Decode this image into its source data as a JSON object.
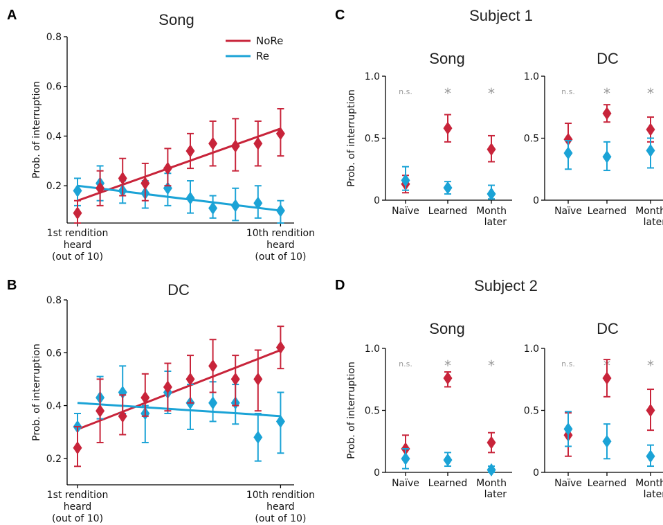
{
  "colors": {
    "nore": "#c8243a",
    "re": "#1ba3d6",
    "sig": "#999999"
  },
  "legend": {
    "location": "top-right",
    "entries": [
      "NoRe",
      "Re"
    ]
  },
  "chart_data": [
    {
      "id": "A",
      "panel": "A",
      "type": "scatter",
      "title": "Song",
      "ylabel": "Prob. of interruption",
      "ylim": [
        0.05,
        0.8
      ],
      "yticks": [
        0.2,
        0.4,
        0.6,
        0.8
      ],
      "xlim": [
        0.5,
        10.5
      ],
      "xtick_labels": [
        {
          "x": 1,
          "lines": [
            "1st rendition",
            "heard",
            "(out of 10)"
          ]
        },
        {
          "x": 10,
          "lines": [
            "10th rendition",
            "heard",
            "(out of 10)"
          ]
        }
      ],
      "series": [
        {
          "name": "NoRe",
          "color": "#c8243a",
          "x": [
            1,
            2,
            3,
            4,
            5,
            6,
            7,
            8,
            9,
            10
          ],
          "y": [
            0.09,
            0.19,
            0.23,
            0.21,
            0.27,
            0.34,
            0.37,
            0.36,
            0.37,
            0.41
          ],
          "lo": [
            0.05,
            0.12,
            0.16,
            0.14,
            0.2,
            0.27,
            0.28,
            0.26,
            0.28,
            0.32
          ],
          "hi": [
            0.14,
            0.26,
            0.31,
            0.29,
            0.35,
            0.41,
            0.46,
            0.47,
            0.46,
            0.51
          ],
          "fit": [
            [
              1,
              0.14
            ],
            [
              10,
              0.43
            ]
          ]
        },
        {
          "name": "Re",
          "color": "#1ba3d6",
          "x": [
            1,
            2,
            3,
            4,
            5,
            6,
            7,
            8,
            9,
            10
          ],
          "y": [
            0.18,
            0.21,
            0.18,
            0.17,
            0.19,
            0.15,
            0.11,
            0.12,
            0.13,
            0.1
          ],
          "lo": [
            0.12,
            0.14,
            0.13,
            0.11,
            0.12,
            0.09,
            0.07,
            0.06,
            0.07,
            0.05
          ],
          "hi": [
            0.23,
            0.28,
            0.22,
            0.22,
            0.25,
            0.22,
            0.16,
            0.19,
            0.2,
            0.14
          ],
          "fit": [
            [
              1,
              0.2
            ],
            [
              10,
              0.1
            ]
          ]
        }
      ]
    },
    {
      "id": "B",
      "panel": "B",
      "type": "scatter",
      "title": "DC",
      "ylabel": "Prob. of interruption",
      "ylim": [
        0.1,
        0.8
      ],
      "yticks": [
        0.2,
        0.4,
        0.6,
        0.8
      ],
      "xlim": [
        0.5,
        10.5
      ],
      "xtick_labels": [
        {
          "x": 1,
          "lines": [
            "1st rendition",
            "heard",
            "(out of 10)"
          ]
        },
        {
          "x": 10,
          "lines": [
            "10th rendition",
            "heard",
            "(out of 10)"
          ]
        }
      ],
      "series": [
        {
          "name": "NoRe",
          "color": "#c8243a",
          "x": [
            1,
            2,
            3,
            4,
            5,
            6,
            7,
            8,
            9,
            10
          ],
          "y": [
            0.24,
            0.38,
            0.36,
            0.43,
            0.47,
            0.5,
            0.55,
            0.5,
            0.5,
            0.62
          ],
          "lo": [
            0.17,
            0.26,
            0.29,
            0.36,
            0.38,
            0.41,
            0.45,
            0.4,
            0.38,
            0.54
          ],
          "hi": [
            0.32,
            0.5,
            0.44,
            0.52,
            0.56,
            0.59,
            0.65,
            0.59,
            0.61,
            0.7
          ],
          "fit": [
            [
              1,
              0.31
            ],
            [
              10,
              0.61
            ]
          ]
        },
        {
          "name": "Re",
          "color": "#1ba3d6",
          "x": [
            1,
            2,
            3,
            4,
            5,
            6,
            7,
            8,
            9,
            10
          ],
          "y": [
            0.32,
            0.43,
            0.45,
            0.37,
            0.45,
            0.41,
            0.41,
            0.41,
            0.28,
            0.34
          ],
          "lo": [
            0.24,
            0.35,
            0.37,
            0.26,
            0.37,
            0.31,
            0.34,
            0.33,
            0.19,
            0.22
          ],
          "hi": [
            0.37,
            0.51,
            0.55,
            0.4,
            0.53,
            0.48,
            0.49,
            0.48,
            0.37,
            0.45
          ],
          "fit": [
            [
              1,
              0.41
            ],
            [
              10,
              0.36
            ]
          ]
        }
      ]
    },
    {
      "id": "C-song",
      "panel": "C",
      "type": "scatter",
      "title": "Song",
      "ylabel": "Prob. of interruption",
      "ylim": [
        0,
        1.0
      ],
      "yticks": [
        0,
        0.5,
        1.0
      ],
      "ytick_labels": [
        "0",
        "0.5",
        "1.0"
      ],
      "categories": [
        [
          "Naïve"
        ],
        [
          "Learned"
        ],
        [
          "Month",
          "later"
        ]
      ],
      "significance": [
        "n.s.",
        "*",
        "*"
      ],
      "series": [
        {
          "name": "NoRe",
          "color": "#c8243a",
          "y": [
            0.13,
            0.58,
            0.41
          ],
          "lo": [
            0.06,
            0.47,
            0.31
          ],
          "hi": [
            0.2,
            0.69,
            0.52
          ]
        },
        {
          "name": "Re",
          "color": "#1ba3d6",
          "y": [
            0.16,
            0.1,
            0.05
          ],
          "lo": [
            0.08,
            0.05,
            0.01
          ],
          "hi": [
            0.27,
            0.15,
            0.12
          ]
        }
      ]
    },
    {
      "id": "C-dc",
      "panel": "C",
      "type": "scatter",
      "title": "DC",
      "ylabel": "",
      "ylim": [
        0,
        1.0
      ],
      "yticks": [
        0,
        0.5,
        1.0
      ],
      "ytick_labels": [
        "0",
        "0.5",
        "1.0"
      ],
      "categories": [
        [
          "Naïve"
        ],
        [
          "Learned"
        ],
        [
          "Month",
          "later"
        ]
      ],
      "significance": [
        "n.s.",
        "*",
        "*"
      ],
      "series": [
        {
          "name": "NoRe",
          "color": "#c8243a",
          "y": [
            0.49,
            0.7,
            0.57
          ],
          "lo": [
            0.37,
            0.63,
            0.47
          ],
          "hi": [
            0.62,
            0.77,
            0.67
          ]
        },
        {
          "name": "Re",
          "color": "#1ba3d6",
          "y": [
            0.38,
            0.35,
            0.4
          ],
          "lo": [
            0.25,
            0.24,
            0.26
          ],
          "hi": [
            0.48,
            0.47,
            0.5
          ]
        }
      ]
    },
    {
      "id": "D-song",
      "panel": "D",
      "type": "scatter",
      "title": "Song",
      "ylabel": "Prob. of interruption",
      "ylim": [
        0,
        1.0
      ],
      "yticks": [
        0,
        0.5,
        1.0
      ],
      "ytick_labels": [
        "0",
        "0.5",
        "1.0"
      ],
      "categories": [
        [
          "Naïve"
        ],
        [
          "Learned"
        ],
        [
          "Month",
          "later"
        ]
      ],
      "significance": [
        "n.s.",
        "*",
        "*"
      ],
      "series": [
        {
          "name": "NoRe",
          "color": "#c8243a",
          "y": [
            0.19,
            0.76,
            0.24
          ],
          "lo": [
            0.1,
            0.69,
            0.16
          ],
          "hi": [
            0.3,
            0.81,
            0.32
          ]
        },
        {
          "name": "Re",
          "color": "#1ba3d6",
          "y": [
            0.11,
            0.1,
            0.02
          ],
          "lo": [
            0.03,
            0.05,
            0.0
          ],
          "hi": [
            0.19,
            0.16,
            0.05
          ]
        }
      ]
    },
    {
      "id": "D-dc",
      "panel": "D",
      "type": "scatter",
      "title": "DC",
      "ylabel": "",
      "ylim": [
        0,
        1.0
      ],
      "yticks": [
        0,
        0.5,
        1.0
      ],
      "ytick_labels": [
        "0",
        "0.5",
        "1.0"
      ],
      "categories": [
        [
          "Naïve"
        ],
        [
          "Learned"
        ],
        [
          "Month",
          "later"
        ]
      ],
      "significance": [
        "n.s.",
        "*",
        "*"
      ],
      "series": [
        {
          "name": "NoRe",
          "color": "#c8243a",
          "y": [
            0.3,
            0.76,
            0.5
          ],
          "lo": [
            0.13,
            0.61,
            0.34
          ],
          "hi": [
            0.48,
            0.91,
            0.67
          ]
        },
        {
          "name": "Re",
          "color": "#1ba3d6",
          "y": [
            0.35,
            0.25,
            0.13
          ],
          "lo": [
            0.21,
            0.11,
            0.05
          ],
          "hi": [
            0.49,
            0.39,
            0.22
          ]
        }
      ]
    }
  ],
  "panel_headers": {
    "C": "Subject 1",
    "D": "Subject 2"
  }
}
